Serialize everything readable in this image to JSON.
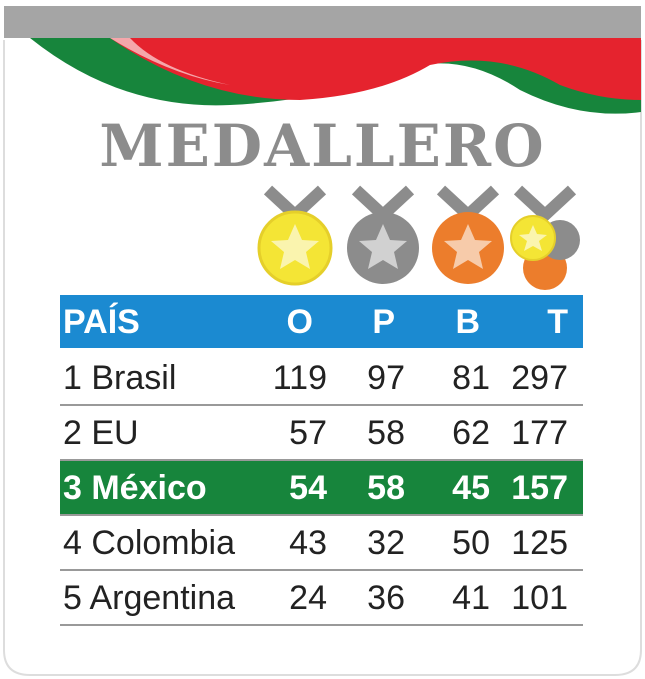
{
  "header": {
    "title": "MEDALLERO"
  },
  "table": {
    "columns": [
      "PAÍS",
      "O",
      "P",
      "B",
      "T"
    ],
    "rows": [
      [
        "1 Brasil",
        119,
        97,
        81,
        297
      ],
      [
        "2 EU",
        57,
        58,
        62,
        177
      ],
      [
        "3 México",
        54,
        58,
        45,
        157
      ],
      [
        "4 Colombia",
        43,
        32,
        50,
        125
      ],
      [
        "5 Argentina",
        24,
        36,
        41,
        101
      ]
    ]
  }
}
